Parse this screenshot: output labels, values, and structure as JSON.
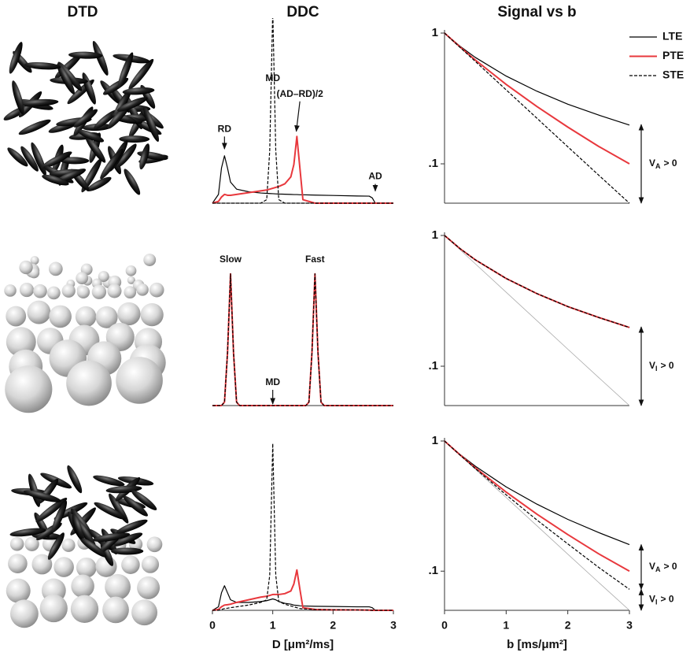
{
  "dtd_title": "DTD",
  "chart_data": [
    {
      "type": "line",
      "title": "DDC",
      "x": [
        0,
        0.1,
        0.15,
        0.2,
        0.25,
        0.3,
        0.4,
        0.6,
        0.8,
        0.9,
        0.95,
        1.0,
        1.05,
        1.1,
        1.2,
        1.3,
        1.35,
        1.4,
        1.45,
        1.5,
        1.7,
        2.0,
        2.4,
        2.6,
        2.65,
        2.7,
        3.0
      ],
      "xlim": [
        0,
        3
      ],
      "ylim": [
        0,
        1
      ],
      "series": [
        {
          "name": "LTE",
          "color": "#000000",
          "values": [
            0,
            0.05,
            0.2,
            0.27,
            0.2,
            0.12,
            0.08,
            0.065,
            0.058,
            0.056,
            0.055,
            0.054,
            0.053,
            0.052,
            0.051,
            0.05,
            0.049,
            0.049,
            0.048,
            0.048,
            0.046,
            0.044,
            0.041,
            0.04,
            0.03,
            0,
            0
          ]
        },
        {
          "name": "PTE",
          "color": "#e8383d",
          "values": [
            0,
            0.01,
            0.035,
            0.05,
            0.045,
            0.045,
            0.05,
            0.06,
            0.07,
            0.075,
            0.08,
            0.085,
            0.09,
            0.095,
            0.11,
            0.15,
            0.22,
            0.38,
            0.2,
            0.02,
            0,
            0,
            0,
            0,
            0,
            0,
            0
          ]
        },
        {
          "name": "STE",
          "color": "#000000",
          "dash": true,
          "values": [
            0,
            0,
            0,
            0,
            0,
            0,
            0,
            0,
            0,
            0.02,
            0.3,
            1.1,
            0.3,
            0.02,
            0,
            0,
            0,
            0,
            0,
            0,
            0,
            0,
            0,
            0,
            0,
            0,
            0
          ]
        }
      ],
      "annotations": [
        {
          "text": "RD",
          "x": 0.2,
          "y": 0.42,
          "arrow": [
            0.2,
            0.3
          ]
        },
        {
          "text": "MD",
          "x": 1.0,
          "y": 0.71
        },
        {
          "text": "(AD–RD)/2",
          "x": 1.45,
          "y": 0.62,
          "arrow": [
            1.39,
            0.4
          ]
        },
        {
          "text": "AD",
          "x": 2.7,
          "y": 0.15,
          "arrow": [
            2.7,
            0.06
          ]
        }
      ]
    },
    {
      "type": "line",
      "title": "Signal vs b",
      "yscale": "log",
      "legend": "upper right",
      "x": [
        0,
        0.25,
        0.5,
        1,
        1.5,
        2,
        2.5,
        3
      ],
      "xlim": [
        0,
        3
      ],
      "ylim": [
        0.05,
        1
      ],
      "yticks": [
        1,
        {
          "value": 0.1,
          "label": ".1"
        }
      ],
      "series": [
        {
          "name": "LTE",
          "color": "#000000",
          "values": [
            1,
            0.794,
            0.651,
            0.469,
            0.359,
            0.286,
            0.236,
            0.198
          ]
        },
        {
          "name": "PTE",
          "color": "#e8383d",
          "values": [
            1,
            0.784,
            0.622,
            0.405,
            0.274,
            0.191,
            0.136,
            0.1
          ]
        },
        {
          "name": "STE",
          "color": "#000000",
          "dash": true,
          "values": [
            1,
            0.779,
            0.607,
            0.368,
            0.223,
            0.135,
            0.082,
            0.05
          ]
        }
      ],
      "brackets": [
        {
          "symbol": "V",
          "subscript": "A",
          "text": "> 0",
          "y": [
            0.05,
            0.2
          ]
        }
      ]
    },
    {
      "type": "line",
      "x": [
        0,
        0.15,
        0.2,
        0.25,
        0.3,
        0.35,
        0.4,
        0.45,
        0.6,
        1.0,
        1.4,
        1.55,
        1.6,
        1.65,
        1.7,
        1.75,
        1.8,
        1.85,
        2.0,
        3.0
      ],
      "xlim": [
        0,
        3
      ],
      "ylim": [
        0,
        1
      ],
      "series": [
        {
          "color": "#000000",
          "values": [
            0,
            0,
            0.02,
            0.3,
            0.75,
            0.3,
            0.02,
            0,
            0,
            0,
            0,
            0,
            0.02,
            0.3,
            0.75,
            0.3,
            0.02,
            0,
            0,
            0
          ]
        },
        {
          "color": "#e8383d",
          "values": [
            0,
            0,
            0.02,
            0.3,
            0.75,
            0.3,
            0.02,
            0,
            0,
            0,
            0,
            0,
            0.02,
            0.3,
            0.75,
            0.3,
            0.02,
            0,
            0,
            0
          ]
        },
        {
          "color": "#000000",
          "dash": true,
          "values": [
            0,
            0,
            0.02,
            0.3,
            0.75,
            0.3,
            0.02,
            0,
            0,
            0,
            0,
            0,
            0.02,
            0.3,
            0.75,
            0.3,
            0.02,
            0,
            0,
            0
          ]
        }
      ],
      "annotations": [
        {
          "text": "Slow",
          "x": 0.3,
          "y": 0.83
        },
        {
          "text": "Fast",
          "x": 1.7,
          "y": 0.83
        },
        {
          "text": "MD",
          "x": 1.0,
          "y": 0.13,
          "arrow": [
            1.0,
            0.0
          ]
        }
      ]
    },
    {
      "type": "line",
      "yscale": "log",
      "x": [
        0,
        0.25,
        0.5,
        1,
        1.5,
        2,
        2.5,
        3
      ],
      "xlim": [
        0,
        3
      ],
      "ylim": [
        0.05,
        1
      ],
      "yticks": [
        1,
        {
          "value": 0.1,
          "label": ".1"
        }
      ],
      "series": [
        {
          "color": "#aaaaaa",
          "thin": true,
          "values": [
            1,
            0.779,
            0.607,
            0.368,
            0.223,
            0.135,
            0.082,
            0.05
          ]
        },
        {
          "color": "#000000",
          "values": [
            1,
            0.794,
            0.651,
            0.469,
            0.359,
            0.286,
            0.236,
            0.198
          ]
        },
        {
          "color": "#e8383d",
          "values": [
            1,
            0.794,
            0.651,
            0.469,
            0.359,
            0.286,
            0.236,
            0.198
          ]
        },
        {
          "color": "#000000",
          "dash": true,
          "values": [
            1,
            0.794,
            0.651,
            0.469,
            0.359,
            0.286,
            0.236,
            0.198
          ]
        }
      ],
      "brackets": [
        {
          "symbol": "V",
          "subscript": "I",
          "text": "> 0",
          "y": [
            0.05,
            0.2
          ]
        }
      ]
    },
    {
      "type": "line",
      "x": [
        0,
        0.1,
        0.15,
        0.2,
        0.25,
        0.3,
        0.4,
        0.6,
        0.8,
        0.9,
        0.95,
        1.0,
        1.05,
        1.1,
        1.2,
        1.3,
        1.35,
        1.4,
        1.45,
        1.5,
        1.7,
        2.0,
        2.4,
        2.6,
        2.65,
        2.7,
        3.0
      ],
      "xlim": [
        0,
        3
      ],
      "ylim": [
        0,
        1
      ],
      "xticks": [
        0,
        1,
        2,
        3
      ],
      "xlabel": "D [μm²/ms]",
      "series": [
        {
          "color": "#000000",
          "values": [
            0,
            0.02,
            0.1,
            0.14,
            0.1,
            0.06,
            0.045,
            0.045,
            0.05,
            0.055,
            0.06,
            0.065,
            0.06,
            0.05,
            0.04,
            0.035,
            0.03,
            0.028,
            0.026,
            0.025,
            0.023,
            0.022,
            0.02,
            0.02,
            0.015,
            0,
            0
          ]
        },
        {
          "color": "#e8383d",
          "values": [
            0,
            0.005,
            0.02,
            0.03,
            0.032,
            0.035,
            0.045,
            0.06,
            0.075,
            0.08,
            0.085,
            0.09,
            0.09,
            0.09,
            0.095,
            0.11,
            0.15,
            0.23,
            0.12,
            0.015,
            0.005,
            0.003,
            0.002,
            0.001,
            0,
            0,
            0
          ]
        },
        {
          "color": "#000000",
          "dash": true,
          "values": [
            0,
            0,
            0.005,
            0.01,
            0.012,
            0.015,
            0.02,
            0.03,
            0.045,
            0.06,
            0.2,
            0.95,
            0.2,
            0.05,
            0.035,
            0.025,
            0.02,
            0.015,
            0.01,
            0.008,
            0.005,
            0.003,
            0.002,
            0.001,
            0,
            0,
            0
          ]
        }
      ]
    },
    {
      "type": "line",
      "yscale": "log",
      "x": [
        0,
        0.25,
        0.5,
        1,
        1.5,
        2,
        2.5,
        3
      ],
      "xlim": [
        0,
        3
      ],
      "ylim": [
        0.05,
        1
      ],
      "yticks": [
        1,
        {
          "value": 0.1,
          "label": ".1"
        }
      ],
      "xticks": [
        0,
        1,
        2,
        3
      ],
      "xlabel": "b [ms/μm²]",
      "series": [
        {
          "color": "#aaaaaa",
          "thin": true,
          "values": [
            1,
            0.779,
            0.607,
            0.368,
            0.223,
            0.135,
            0.082,
            0.05
          ]
        },
        {
          "color": "#000000",
          "values": [
            1,
            0.79,
            0.64,
            0.444,
            0.327,
            0.25,
            0.198,
            0.16
          ]
        },
        {
          "color": "#e8383d",
          "values": [
            1,
            0.784,
            0.622,
            0.405,
            0.274,
            0.191,
            0.136,
            0.1
          ]
        },
        {
          "color": "#000000",
          "dash": true,
          "values": [
            1,
            0.781,
            0.614,
            0.386,
            0.247,
            0.162,
            0.107,
            0.0725
          ]
        }
      ],
      "brackets": [
        {
          "symbol": "V",
          "subscript": "A",
          "text": "> 0",
          "y": [
            0.0725,
            0.16
          ]
        },
        {
          "symbol": "V",
          "subscript": "I",
          "text": "> 0",
          "y": [
            0.05,
            0.0725
          ]
        }
      ]
    }
  ]
}
